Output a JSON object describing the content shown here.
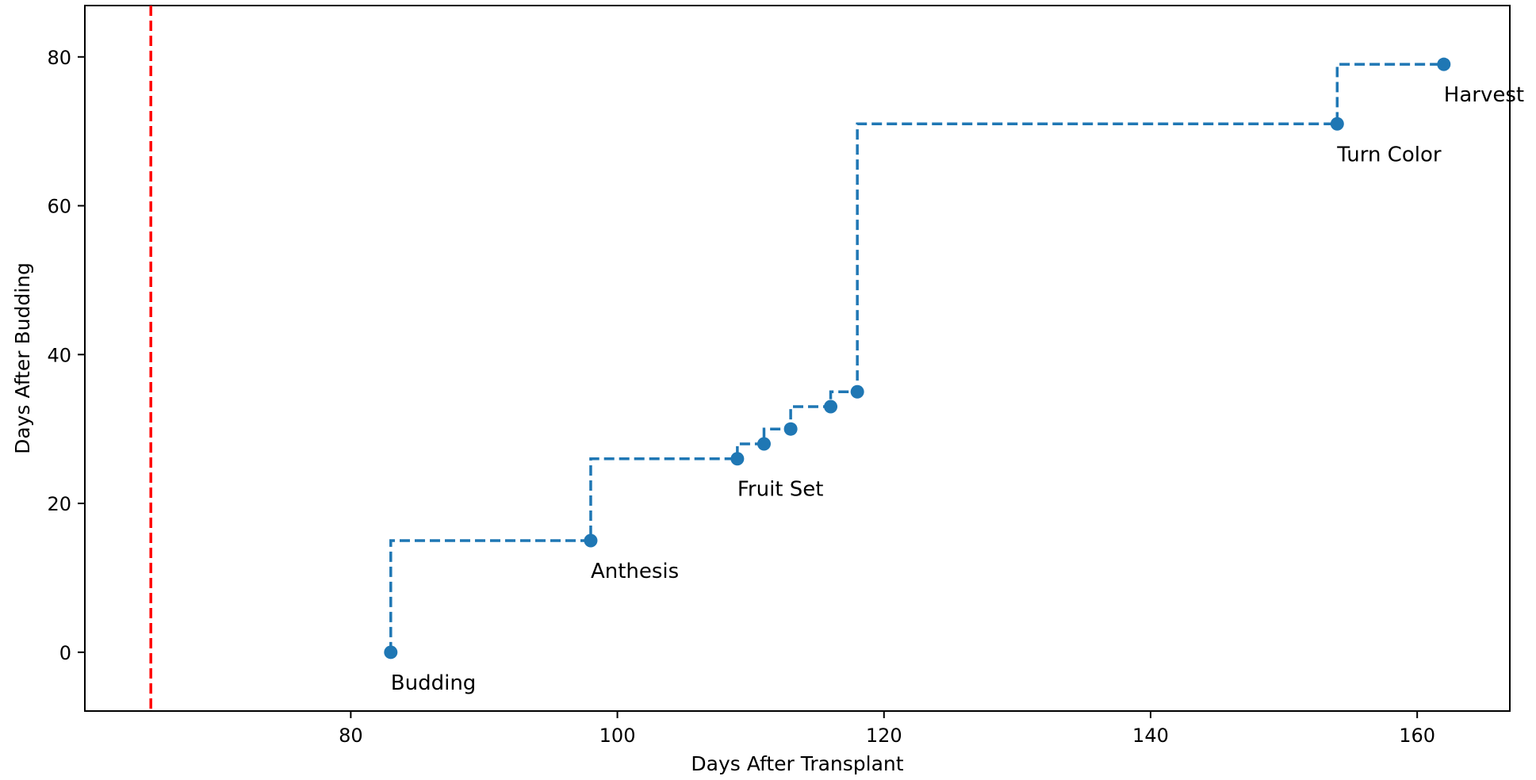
{
  "chart_data": {
    "type": "line",
    "step": "post",
    "xlabel": "Days After Transplant",
    "ylabel": "Days After Budding",
    "xlim": [
      60.05,
      166.95
    ],
    "ylim": [
      -7.9,
      86.9
    ],
    "xticks": [
      80,
      100,
      120,
      140,
      160
    ],
    "yticks": [
      0,
      20,
      40,
      60,
      80
    ],
    "grid": false,
    "series": [
      {
        "color": "#1f77b4",
        "marker": "circle",
        "linestyle": "dashed",
        "points": [
          {
            "x": 83,
            "y": 0,
            "label": "Budding"
          },
          {
            "x": 98,
            "y": 15,
            "label": "Anthesis"
          },
          {
            "x": 109,
            "y": 26,
            "label": "Fruit Set"
          },
          {
            "x": 111,
            "y": 28,
            "label": ""
          },
          {
            "x": 113,
            "y": 30,
            "label": ""
          },
          {
            "x": 116,
            "y": 33,
            "label": ""
          },
          {
            "x": 118,
            "y": 35,
            "label": ""
          },
          {
            "x": 154,
            "y": 71,
            "label": "Turn Color"
          },
          {
            "x": 162,
            "y": 79,
            "label": "Harvest"
          }
        ]
      }
    ],
    "reference_lines": [
      {
        "orientation": "vertical",
        "x": 65,
        "color": "#ff0000",
        "linestyle": "dashed"
      }
    ]
  }
}
